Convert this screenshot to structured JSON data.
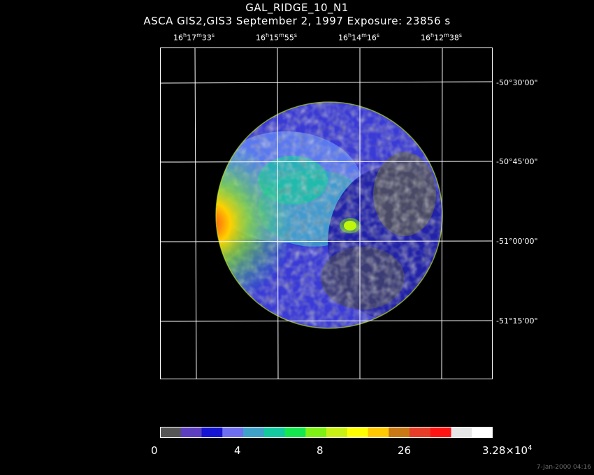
{
  "title": "GAL_RIDGE_10_N1",
  "subtitle": "ASCA GIS2,GIS3 September 2, 1997 Exposure: 23856 s",
  "ra_labels": [
    {
      "h": "16",
      "m": "17",
      "s": "33"
    },
    {
      "h": "16",
      "m": "15",
      "s": "55"
    },
    {
      "h": "16",
      "m": "14",
      "s": "16"
    },
    {
      "h": "16",
      "m": "12",
      "s": "38"
    }
  ],
  "dec_labels": [
    "-50°30'00\"",
    "-50°45'00\"",
    "-51°00'00\"",
    "-51°15'00\""
  ],
  "colorbar": {
    "labels": [
      "0",
      "4",
      "8",
      "26"
    ],
    "max_mantissa": "3.28×10",
    "max_exponent": "4",
    "colors": [
      "#555555",
      "#5b3fbf",
      "#1414d2",
      "#6e6ef0",
      "#3fa0c8",
      "#14c8a0",
      "#14e650",
      "#7ef014",
      "#c8f014",
      "#ffff00",
      "#ffc800",
      "#c87814",
      "#e63c28",
      "#ff1414",
      "#e6e6e6",
      "#ffffff"
    ]
  },
  "timestamp": "7-Jan-2000 04:16"
}
